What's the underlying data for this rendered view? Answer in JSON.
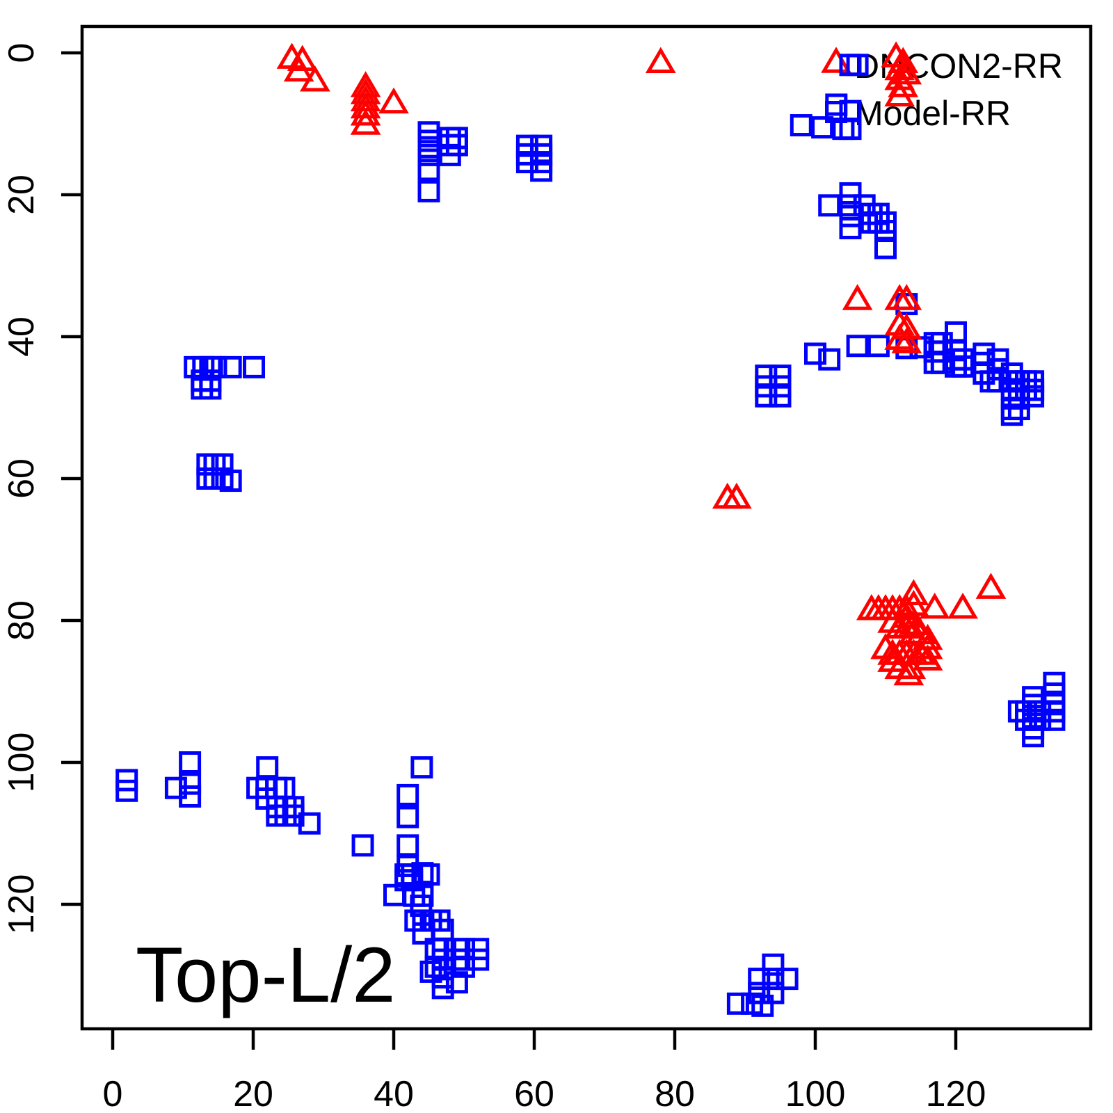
{
  "figure": {
    "background": "#FFFFFF",
    "axis_color": "#000000"
  },
  "annotation": {
    "text": "Top-L/2"
  },
  "legend": {
    "position": "top-right",
    "items": [
      {
        "label": "DNCON2-RR",
        "marker": "triangle",
        "color": "#FF0000"
      },
      {
        "label": "Model-RR",
        "marker": "square",
        "color": "#0000FF"
      }
    ]
  },
  "chart_data": {
    "type": "scatter",
    "title": "",
    "xlabel": "",
    "ylabel": "",
    "annotation": "Top-L/2",
    "x_ticks": [
      0,
      20,
      40,
      60,
      80,
      100,
      120
    ],
    "y_ticks": [
      0,
      20,
      40,
      60,
      80,
      100,
      120
    ],
    "xlim": [
      -4,
      139
    ],
    "ylim": [
      -4,
      137
    ],
    "y_axis_reversed": true,
    "grid": false,
    "legend_position": "top-right",
    "series": [
      {
        "name": "Model-RR",
        "marker": "square",
        "color": "#0000FF",
        "points": [
          [
            45,
            11.2
          ],
          [
            45,
            12.4
          ],
          [
            45,
            13.3
          ],
          [
            45,
            14.4
          ],
          [
            45,
            16.5
          ],
          [
            45,
            19.5
          ],
          [
            48,
            12
          ],
          [
            49,
            12
          ],
          [
            48,
            13
          ],
          [
            49,
            13
          ],
          [
            48,
            14.4
          ],
          [
            59,
            13.1
          ],
          [
            61,
            13.1
          ],
          [
            59,
            14.3
          ],
          [
            61,
            14.3
          ],
          [
            59,
            15.4
          ],
          [
            61,
            15.4
          ],
          [
            61,
            16.6
          ],
          [
            105,
            1.7
          ],
          [
            106,
            1.7
          ],
          [
            103,
            7.3
          ],
          [
            105,
            8.2
          ],
          [
            98,
            10.2
          ],
          [
            101,
            10.5
          ],
          [
            104,
            10.7
          ],
          [
            105,
            10.7
          ],
          [
            102,
            21.5
          ],
          [
            105,
            19.8
          ],
          [
            105,
            21.5
          ],
          [
            105,
            23
          ],
          [
            105,
            24.7
          ],
          [
            107,
            21.5
          ],
          [
            108,
            22.7
          ],
          [
            109,
            22.7
          ],
          [
            108,
            23.9
          ],
          [
            109,
            23.9
          ],
          [
            110,
            23.9
          ],
          [
            110,
            25.1
          ],
          [
            110,
            27.5
          ],
          [
            93,
            45.5
          ],
          [
            95,
            45.5
          ],
          [
            93,
            47
          ],
          [
            95,
            47
          ],
          [
            93,
            48.4
          ],
          [
            95,
            48.4
          ],
          [
            100,
            42.4
          ],
          [
            102,
            43.2
          ],
          [
            106,
            41.3
          ],
          [
            109,
            41.3
          ],
          [
            113,
            35.4
          ],
          [
            113,
            41.6
          ],
          [
            115,
            41.5
          ],
          [
            117,
            40.9
          ],
          [
            118,
            40.9
          ],
          [
            117,
            42.1
          ],
          [
            118,
            42.1
          ],
          [
            117,
            43.7
          ],
          [
            118,
            43.7
          ],
          [
            120,
            39.4
          ],
          [
            120,
            41.9
          ],
          [
            120,
            43.2
          ],
          [
            121,
            43.2
          ],
          [
            120,
            44.2
          ],
          [
            121,
            44.2
          ],
          [
            124,
            42.4
          ],
          [
            126,
            43.2
          ],
          [
            124,
            43.7
          ],
          [
            124,
            45.2
          ],
          [
            126,
            44.6
          ],
          [
            125,
            46.3
          ],
          [
            126,
            46.3
          ],
          [
            128,
            45.2
          ],
          [
            128,
            46.3
          ],
          [
            129,
            46.3
          ],
          [
            130,
            46.3
          ],
          [
            131,
            46.3
          ],
          [
            128,
            47.4
          ],
          [
            129,
            47.4
          ],
          [
            130,
            47.5
          ],
          [
            131,
            47.5
          ],
          [
            131,
            48.4
          ],
          [
            128,
            48.7
          ],
          [
            129,
            48.7
          ],
          [
            128,
            50.2
          ],
          [
            129,
            50.2
          ],
          [
            128,
            51
          ],
          [
            11.7,
            44.3
          ],
          [
            12.9,
            44.3
          ],
          [
            13.9,
            44.3
          ],
          [
            14.7,
            44.3
          ],
          [
            16.8,
            44.3
          ],
          [
            20.1,
            44.3
          ],
          [
            12.7,
            46.2
          ],
          [
            13.9,
            46.2
          ],
          [
            12.7,
            47.3
          ],
          [
            13.9,
            47.3
          ],
          [
            13.5,
            58
          ],
          [
            14.5,
            58
          ],
          [
            15.6,
            58
          ],
          [
            13.5,
            60
          ],
          [
            14.5,
            60
          ],
          [
            15.6,
            60
          ],
          [
            16.8,
            60.3
          ],
          [
            2,
            102.5
          ],
          [
            2,
            104
          ],
          [
            11,
            100
          ],
          [
            9,
            103.6
          ],
          [
            11,
            103
          ],
          [
            11,
            104.8
          ],
          [
            22,
            100.7
          ],
          [
            20.6,
            103.6
          ],
          [
            21.9,
            103.6
          ],
          [
            23.3,
            103.6
          ],
          [
            24.4,
            103.6
          ],
          [
            21.9,
            105.1
          ],
          [
            23.4,
            106.3
          ],
          [
            24.6,
            106.3
          ],
          [
            25.7,
            106.3
          ],
          [
            23.4,
            107.5
          ],
          [
            24.6,
            107.5
          ],
          [
            25.7,
            107.5
          ],
          [
            28,
            108.6
          ],
          [
            35.6,
            111.7
          ],
          [
            44,
            100.7
          ],
          [
            42,
            104.6
          ],
          [
            42,
            107.7
          ],
          [
            42,
            111.7
          ],
          [
            42,
            114.6
          ],
          [
            41.7,
            115.8
          ],
          [
            42.6,
            115.8
          ],
          [
            41.7,
            116.6
          ],
          [
            42.6,
            116.6
          ],
          [
            44.1,
            115.6
          ],
          [
            45,
            115.8
          ],
          [
            40.1,
            118.7
          ],
          [
            42.9,
            118.8
          ],
          [
            44.1,
            118.8
          ],
          [
            43.9,
            120.2
          ],
          [
            43.1,
            122.3
          ],
          [
            44.2,
            122.3
          ],
          [
            45.3,
            122.3
          ],
          [
            46.5,
            122.3
          ],
          [
            44.2,
            124.1
          ],
          [
            47,
            123.6
          ],
          [
            46,
            126.3
          ],
          [
            47,
            126.3
          ],
          [
            49,
            126.3
          ],
          [
            50,
            126.3
          ],
          [
            52,
            126.3
          ],
          [
            47,
            127.8
          ],
          [
            49,
            127.8
          ],
          [
            50,
            127.8
          ],
          [
            52,
            127.8
          ],
          [
            46,
            128.8
          ],
          [
            47,
            129.1
          ],
          [
            45.3,
            129.5
          ],
          [
            50,
            128.8
          ],
          [
            47,
            130.3
          ],
          [
            49,
            131
          ],
          [
            47,
            131.8
          ],
          [
            94,
            128.5
          ],
          [
            92,
            130.5
          ],
          [
            94,
            130.5
          ],
          [
            96,
            130.5
          ],
          [
            92,
            132.5
          ],
          [
            94,
            132.5
          ],
          [
            89,
            134
          ],
          [
            91,
            134
          ],
          [
            92.5,
            134.3
          ],
          [
            134,
            88.8
          ],
          [
            134,
            90.3
          ],
          [
            131,
            90.8
          ],
          [
            131,
            91.9
          ],
          [
            134,
            91.8
          ],
          [
            129,
            92.8
          ],
          [
            130,
            92.8
          ],
          [
            131,
            92.8
          ],
          [
            132,
            92.8
          ],
          [
            134,
            92.8
          ],
          [
            130,
            94
          ],
          [
            131,
            94
          ],
          [
            132,
            94
          ],
          [
            134,
            94
          ],
          [
            131,
            95.2
          ],
          [
            131,
            96.3
          ]
        ]
      },
      {
        "name": "DNCON2-RR",
        "marker": "triangle",
        "color": "#FF0000",
        "points": [
          [
            25.5,
            1
          ],
          [
            27,
            1.3
          ],
          [
            26.5,
            2.8
          ],
          [
            28.8,
            4.2
          ],
          [
            36,
            5
          ],
          [
            36,
            6
          ],
          [
            36,
            7
          ],
          [
            36,
            8
          ],
          [
            36,
            9
          ],
          [
            36,
            10.3
          ],
          [
            40,
            7.3
          ],
          [
            78,
            1.6
          ],
          [
            111.5,
            0.8
          ],
          [
            112.5,
            1.6
          ],
          [
            112,
            2.6
          ],
          [
            113,
            3.2
          ],
          [
            112,
            4
          ],
          [
            112.5,
            5
          ],
          [
            112,
            6.3
          ],
          [
            106,
            35
          ],
          [
            112,
            35
          ],
          [
            113,
            35
          ],
          [
            112,
            38.6
          ],
          [
            113,
            39.1
          ],
          [
            112,
            40.6
          ],
          [
            113,
            41.1
          ],
          [
            87.5,
            63
          ],
          [
            88.8,
            63
          ],
          [
            108,
            78.7
          ],
          [
            109,
            78.7
          ],
          [
            110,
            78.7
          ],
          [
            111,
            78.7
          ],
          [
            112,
            78.7
          ],
          [
            113,
            78.7
          ],
          [
            114,
            76.6
          ],
          [
            114,
            78.1
          ],
          [
            117,
            78.5
          ],
          [
            121,
            78.5
          ],
          [
            125,
            75.7
          ],
          [
            113,
            79.8
          ],
          [
            111,
            80.5
          ],
          [
            114,
            80.8
          ],
          [
            112,
            81.3
          ],
          [
            113,
            81.3
          ],
          [
            114,
            82.1
          ],
          [
            115,
            82.1
          ],
          [
            116,
            82.9
          ],
          [
            110,
            84.2
          ],
          [
            116,
            84.2
          ],
          [
            111,
            85
          ],
          [
            112,
            85
          ],
          [
            113,
            85
          ],
          [
            114,
            85
          ],
          [
            115,
            85
          ],
          [
            111,
            86
          ],
          [
            116,
            85.8
          ],
          [
            112,
            87
          ],
          [
            113.6,
            87
          ],
          [
            113.3,
            87.9
          ]
        ]
      }
    ]
  }
}
